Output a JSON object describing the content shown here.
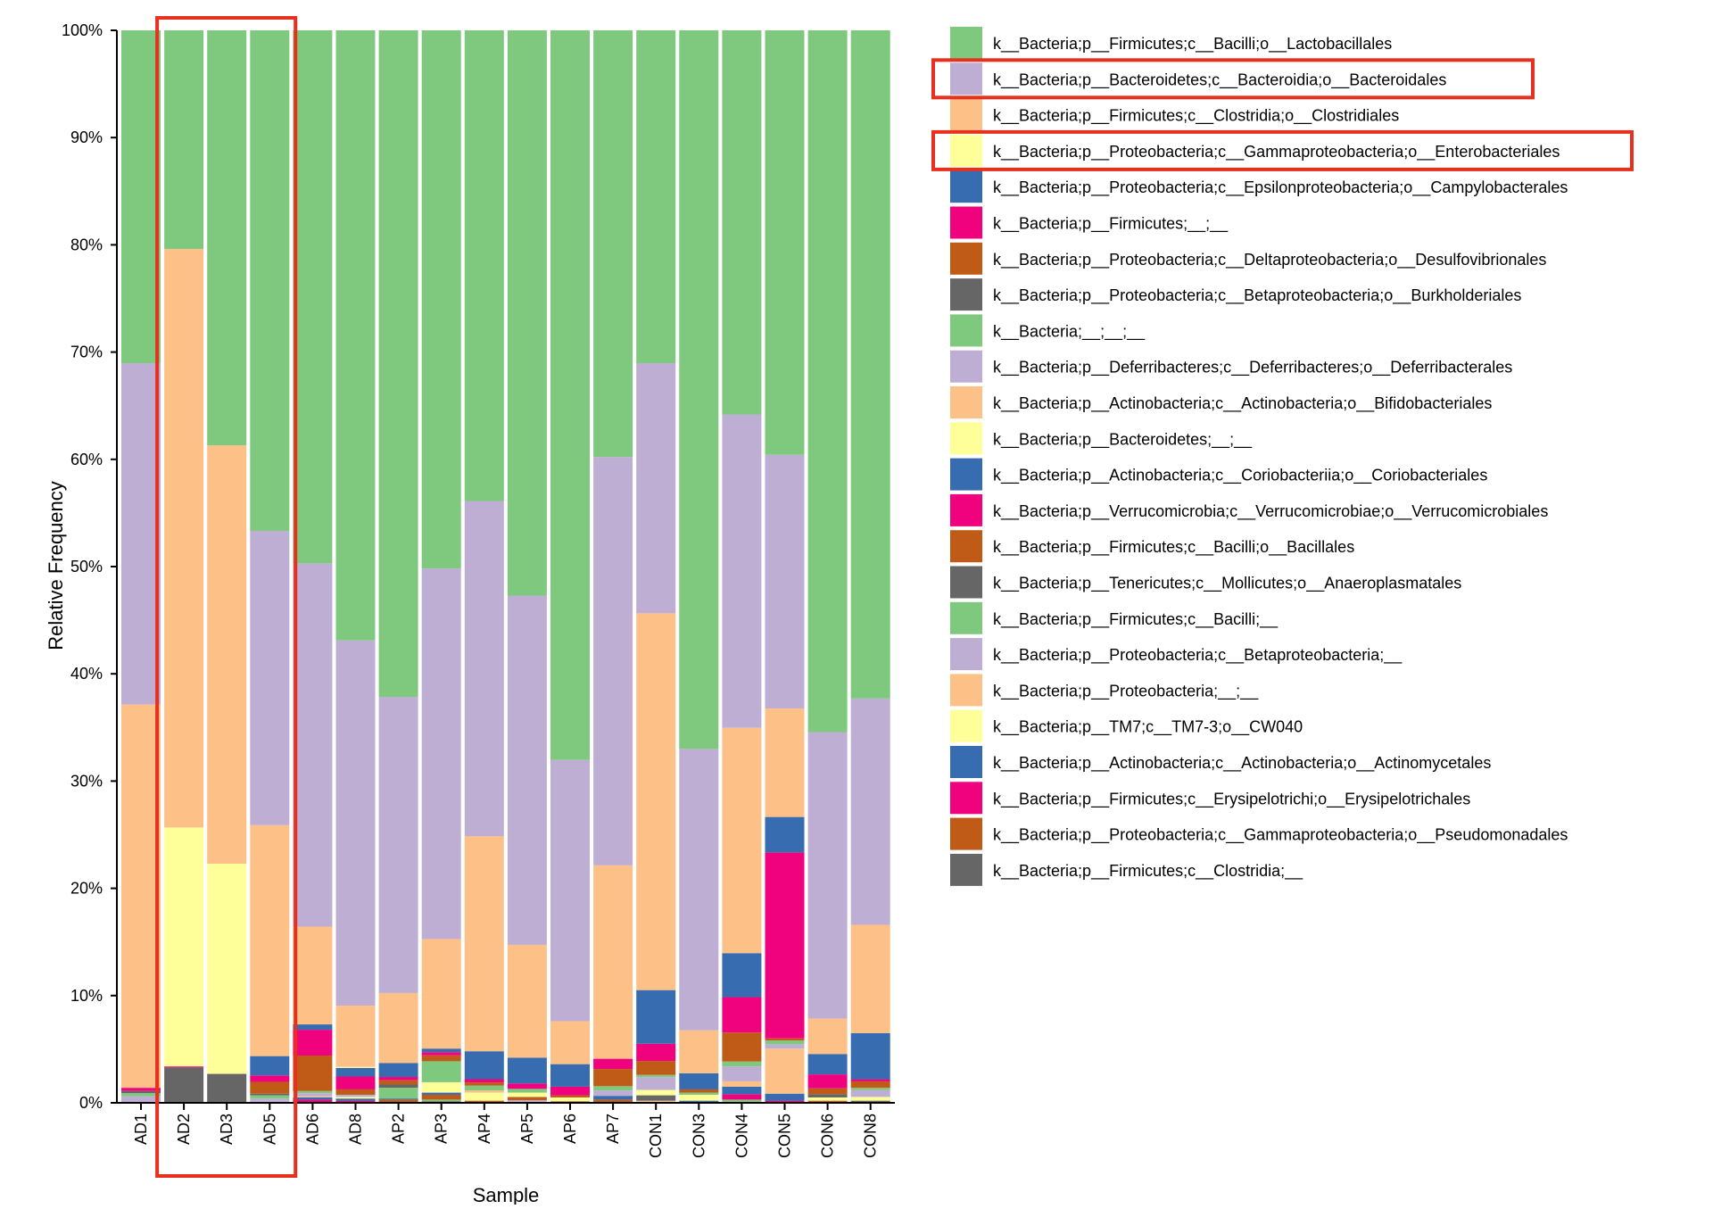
{
  "chart_data": {
    "type": "bar",
    "stacked": true,
    "xlabel": "Sample",
    "ylabel": "Relative Frequency",
    "ylim": [
      0,
      100
    ],
    "yticks": [
      "0%",
      "10%",
      "20%",
      "30%",
      "40%",
      "50%",
      "60%",
      "70%",
      "80%",
      "90%",
      "100%"
    ],
    "grid": false,
    "legend_position": "right",
    "categories": [
      "AD1",
      "AD2",
      "AD3",
      "AD5",
      "AD6",
      "AD8",
      "AP2",
      "AP3",
      "AP4",
      "AP5",
      "AP6",
      "AP7",
      "CON1",
      "CON3",
      "CON4",
      "CON5",
      "CON6",
      "CON8"
    ],
    "highlight": {
      "samples": [
        "AD2",
        "AD3"
      ],
      "legend_entries": [
        "k__Bacteria;p__Bacteroidetes;c__Bacteroidia;o__Bacteroidales",
        "k__Bacteria;p__Proteobacteria;c__Gammaproteobacteria;o__Enterobacteriales"
      ],
      "color": "#e8301e"
    },
    "series": [
      {
        "name": "k__Bacteria;p__Firmicutes;c__Bacilli;o__Lactobacillales",
        "color": "#7fc97f",
        "values": [
          31,
          20.4,
          38.7,
          46.6,
          49.6,
          56.8,
          61.9,
          50.1,
          43.8,
          52.6,
          67.9,
          39.7,
          31,
          66.9,
          35.8,
          39.5,
          65.4,
          62.3
        ]
      },
      {
        "name": "k__Bacteria;p__Bacteroidetes;c__Bacteroidia;o__Bacteroidales",
        "color": "#beaed4",
        "values": [
          31.8,
          0,
          0,
          27.4,
          33.8,
          34,
          27.5,
          34.5,
          31.2,
          32.5,
          24.3,
          38,
          23.3,
          26.2,
          29.2,
          23.6,
          26.7,
          21.1
        ]
      },
      {
        "name": "k__Bacteria;p__Firmicutes;c__Clostridia;o__Clostridiales",
        "color": "#fdc086",
        "values": [
          35.7,
          54,
          39,
          21.5,
          9.1,
          5.7,
          6.5,
          10.2,
          20,
          10.5,
          4,
          18,
          35.1,
          4,
          21,
          10.1,
          3.3,
          10.1
        ]
      },
      {
        "name": "k__Bacteria;p__Proteobacteria;c__Gammaproteobacteria;o__Enterobacteriales",
        "color": "#ffff99",
        "values": [
          0,
          22.3,
          19.6,
          0,
          0,
          0.1,
          0,
          0,
          0,
          0,
          0,
          0,
          0,
          0,
          0,
          0,
          0,
          0
        ]
      },
      {
        "name": "k__Bacteria;p__Proteobacteria;c__Epsilonproteobacteria;o__Campylobacterales",
        "color": "#386cb0",
        "values": [
          0,
          0,
          0,
          1.8,
          0.5,
          0.8,
          1.3,
          0.33,
          2.6,
          2.4,
          2.1,
          0,
          5,
          1.5,
          4.1,
          3.3,
          1.9,
          4.3
        ]
      },
      {
        "name": "k__Bacteria;p__Firmicutes;__;__",
        "color": "#f0027f",
        "values": [
          0.3,
          0.1,
          0,
          0.6,
          2.4,
          1.2,
          0.3,
          0.3,
          0.3,
          0.5,
          0.8,
          0.95,
          1.6,
          0,
          3.3,
          17.3,
          1.3,
          0.2
        ]
      },
      {
        "name": "k__Bacteria;p__Proteobacteria;c__Deltaproteobacteria;o__Desulfovibrionales",
        "color": "#bf5b17",
        "values": [
          0,
          0,
          0,
          1.1,
          3.3,
          0.5,
          0.4,
          0.55,
          0.3,
          0,
          0.2,
          1.6,
          1.3,
          0.3,
          2.7,
          0.2,
          0.55,
          0.6
        ]
      },
      {
        "name": "k__Bacteria;p__Proteobacteria;c__Betaproteobacteria;o__Burkholderiales",
        "color": "#666666",
        "values": [
          0.2,
          3.3,
          2.7,
          0.15,
          0,
          0,
          0.3,
          0,
          0,
          0,
          0,
          0,
          0,
          0,
          0,
          0,
          0.3,
          0
        ]
      },
      {
        "name": "k__Bacteria;__;__;__",
        "color": "#7fc97f",
        "values": [
          0.3,
          0,
          0,
          0.3,
          0.2,
          0,
          1.0,
          1.95,
          0.45,
          0.35,
          0,
          0.4,
          0.2,
          0.2,
          0.45,
          0.35,
          0,
          0.2
        ]
      },
      {
        "name": "k__Bacteria;p__Deferribacteres;c__Deferribacteres;o__Deferribacterales",
        "color": "#beaed4",
        "values": [
          0.6,
          0,
          0,
          0.2,
          0.3,
          0.2,
          0,
          0,
          0,
          0,
          0,
          0.5,
          1.2,
          0,
          1.4,
          0.4,
          0,
          0.65
        ]
      },
      {
        "name": "k__Bacteria;p__Actinobacteria;c__Actinobacteria;o__Bifidobacteriales",
        "color": "#fdc086",
        "values": [
          0,
          0,
          0,
          0,
          0.1,
          0,
          0,
          0,
          0.2,
          0,
          0,
          0,
          0,
          0,
          0.5,
          4.2,
          0,
          0
        ]
      },
      {
        "name": "k__Bacteria;p__Bacteroidetes;__;__",
        "color": "#ffff99",
        "values": [
          0,
          0,
          0,
          0,
          0,
          0.15,
          0,
          0.97,
          0.75,
          0.4,
          0.35,
          0,
          0.5,
          0.55,
          0,
          0,
          0.3,
          0.35
        ]
      },
      {
        "name": "k__Bacteria;p__Actinobacteria;c__Coriobacteriia;o__Coriobacteriales",
        "color": "#386cb0",
        "values": [
          0,
          0,
          0,
          0,
          0.2,
          0.2,
          0.1,
          0.2,
          0,
          0,
          0,
          0.35,
          0,
          0.2,
          0.7,
          0.65,
          0,
          0
        ]
      },
      {
        "name": "k__Bacteria;p__Verrucomicrobia;c__Verrucomicrobiae;o__Verrucomicrobiales",
        "color": "#f0027f",
        "values": [
          0,
          0,
          0,
          0,
          0,
          0,
          0,
          0,
          0,
          0,
          0,
          0,
          0,
          0,
          0.5,
          0.2,
          0,
          0
        ]
      },
      {
        "name": "k__Bacteria;p__Firmicutes;c__Bacilli;o__Bacillales",
        "color": "#bf5b17",
        "values": [
          0,
          0,
          0,
          0,
          0,
          0,
          0.3,
          0.45,
          0.2,
          0.3,
          0.15,
          0.3,
          0,
          0,
          0,
          0,
          0.2,
          0
        ]
      },
      {
        "name": "k__Bacteria;p__Tenericutes;c__Mollicutes;o__Anaeroplasmatales",
        "color": "#666666",
        "values": [
          0,
          0,
          0,
          0,
          0,
          0,
          0,
          0,
          0,
          0,
          0,
          0,
          0.5,
          0,
          0,
          0,
          0,
          0.2
        ]
      },
      {
        "name": "k__Bacteria;p__Firmicutes;c__Bacilli;__",
        "color": "#7fc97f",
        "values": [
          0,
          0,
          0,
          0,
          0,
          0,
          0,
          0.15,
          0,
          0,
          0,
          0,
          0,
          0,
          0.3,
          0,
          0,
          0
        ]
      },
      {
        "name": "k__Bacteria;p__Proteobacteria;c__Betaproteobacteria;__",
        "color": "#beaed4",
        "values": [
          0,
          0,
          0,
          0.2,
          0,
          0,
          0,
          0,
          0,
          0.25,
          0,
          0,
          0,
          0,
          0,
          0,
          0,
          0
        ]
      },
      {
        "name": "k__Bacteria;p__Proteobacteria;__;__",
        "color": "#fdc086",
        "values": [
          0,
          0,
          0,
          0,
          0,
          0,
          0,
          0,
          0,
          0,
          0,
          0,
          0.2,
          0,
          0,
          0,
          0,
          0
        ]
      },
      {
        "name": "k__Bacteria;p__TM7;c__TM7-3;o__CW040",
        "color": "#ffff99",
        "values": [
          0,
          0,
          0,
          0,
          0,
          0,
          0,
          0,
          0,
          0,
          0,
          0,
          0,
          0,
          0,
          0,
          0,
          0
        ]
      },
      {
        "name": "k__Bacteria;p__Actinobacteria;c__Actinobacteria;o__Actinomycetales",
        "color": "#386cb0",
        "values": [
          0,
          0,
          0,
          0,
          0,
          0,
          0,
          0,
          0,
          0,
          0,
          0,
          0,
          0,
          0,
          0,
          0,
          0
        ]
      },
      {
        "name": "k__Bacteria;p__Firmicutes;c__Erysipelotrichi;o__Erysipelotrichales",
        "color": "#f0027f",
        "values": [
          0,
          0,
          0,
          0,
          0.3,
          0.2,
          0,
          0,
          0,
          0,
          0,
          0,
          0,
          0,
          0,
          0,
          0,
          0
        ]
      },
      {
        "name": "k__Bacteria;p__Proteobacteria;c__Gammaproteobacteria;o__Pseudomonadales",
        "color": "#bf5b17",
        "values": [
          0,
          0,
          0,
          0,
          0,
          0,
          0,
          0,
          0,
          0,
          0,
          0,
          0,
          0,
          0,
          0,
          0,
          0
        ]
      },
      {
        "name": "k__Bacteria;p__Firmicutes;c__Clostridia;__",
        "color": "#666666",
        "values": [
          0,
          0,
          0,
          0,
          0,
          0,
          0,
          0.15,
          0,
          0,
          0,
          0,
          0,
          0,
          0,
          0,
          0,
          0
        ]
      }
    ]
  }
}
